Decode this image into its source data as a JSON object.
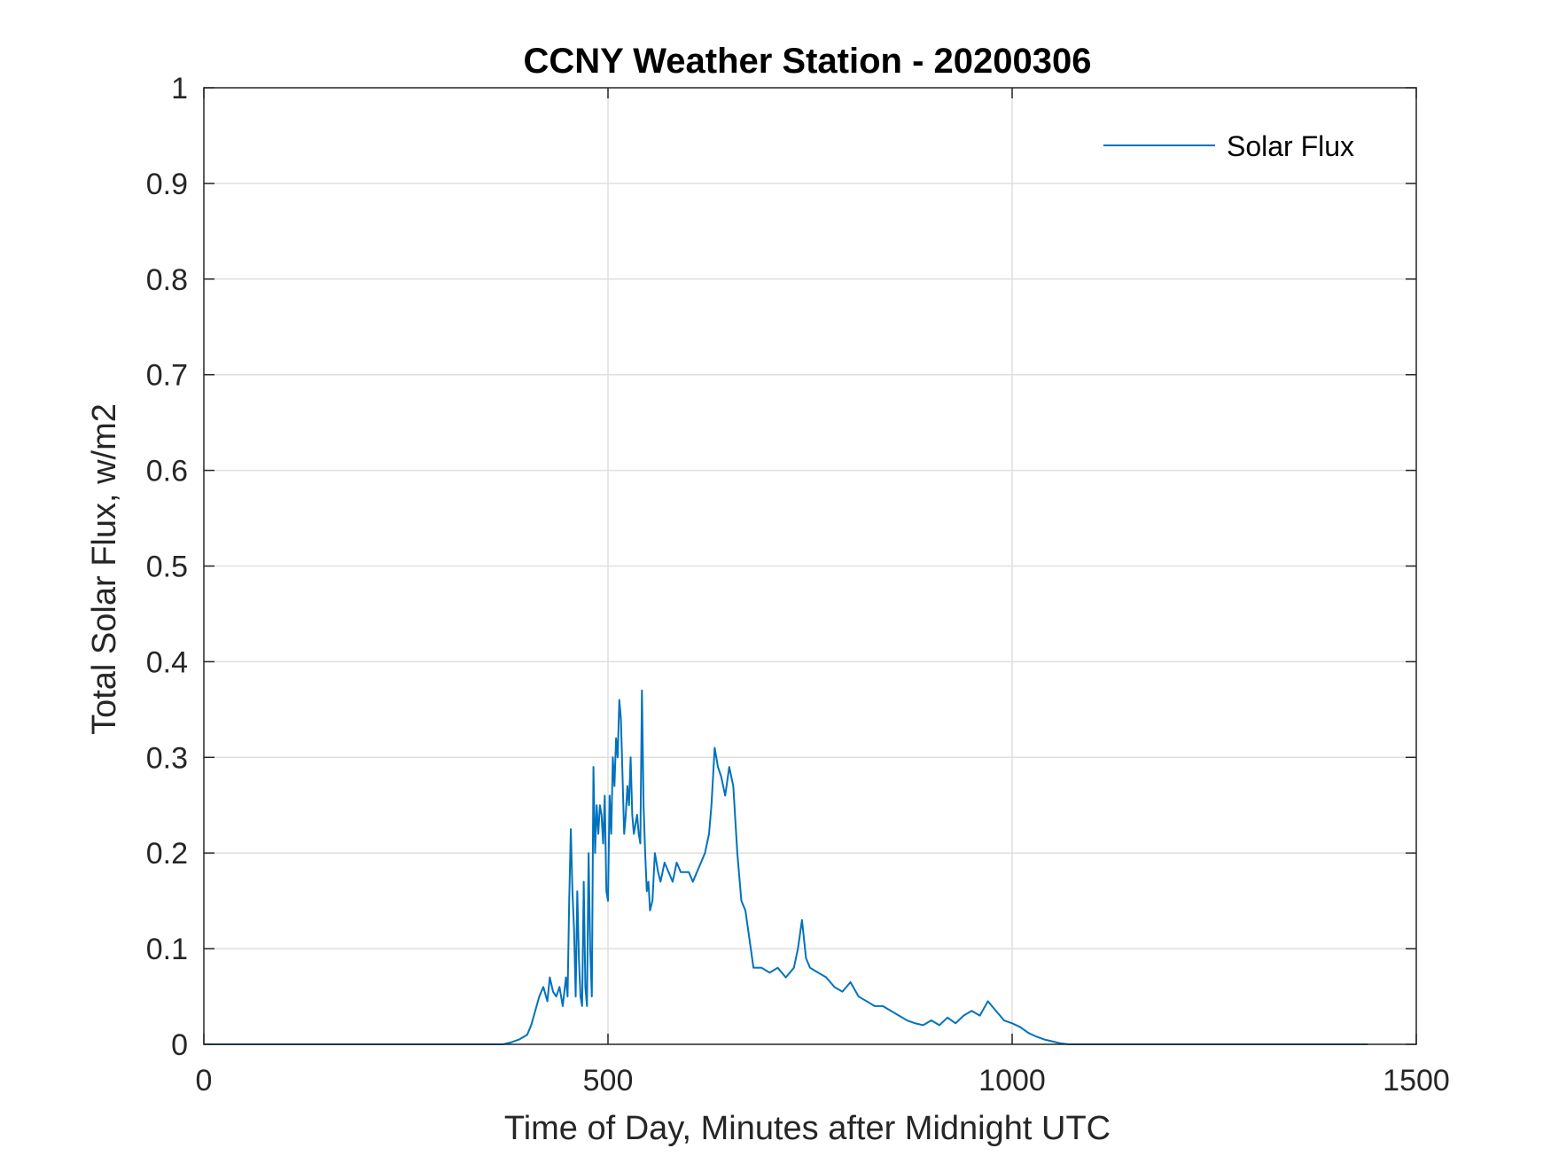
{
  "chart_data": {
    "type": "line",
    "title": "CCNY Weather Station - 20200306",
    "xlabel": "Time of Day, Minutes after Midnight UTC",
    "ylabel": "Total Solar Flux, w/m2",
    "xlim": [
      0,
      1500
    ],
    "ylim": [
      0,
      1
    ],
    "xticks": [
      0,
      500,
      1000,
      1500
    ],
    "yticks": [
      0,
      0.1,
      0.2,
      0.3,
      0.4,
      0.5,
      0.6,
      0.7,
      0.8,
      0.9,
      1
    ],
    "grid": true,
    "legend_position": "top-right",
    "series": [
      {
        "name": "Solar Flux",
        "color": "#0072BD",
        "x": [
          0,
          100,
          200,
          300,
          370,
          380,
          390,
          400,
          405,
          410,
          415,
          420,
          425,
          428,
          432,
          436,
          440,
          444,
          448,
          450,
          452,
          454,
          456,
          458,
          460,
          462,
          464,
          466,
          468,
          470,
          472,
          474,
          476,
          478,
          480,
          482,
          484,
          486,
          488,
          490,
          492,
          494,
          496,
          498,
          500,
          502,
          504,
          506,
          508,
          510,
          512,
          514,
          516,
          518,
          520,
          522,
          524,
          526,
          528,
          530,
          532,
          534,
          536,
          538,
          540,
          542,
          544,
          546,
          548,
          550,
          552,
          555,
          558,
          562,
          565,
          570,
          575,
          580,
          585,
          590,
          595,
          600,
          605,
          610,
          615,
          620,
          625,
          628,
          632,
          636,
          640,
          645,
          650,
          655,
          660,
          665,
          670,
          675,
          680,
          690,
          700,
          710,
          720,
          730,
          735,
          740,
          745,
          750,
          760,
          770,
          780,
          790,
          800,
          810,
          820,
          830,
          840,
          850,
          860,
          870,
          880,
          890,
          900,
          910,
          920,
          930,
          940,
          950,
          960,
          970,
          975,
          980,
          985,
          990,
          1000,
          1010,
          1020,
          1030,
          1040,
          1050,
          1060,
          1070,
          1080,
          1100,
          1200,
          1300,
          1440
        ],
        "y": [
          0,
          0,
          0,
          0,
          0,
          0.002,
          0.005,
          0.01,
          0.02,
          0.035,
          0.05,
          0.06,
          0.045,
          0.07,
          0.055,
          0.05,
          0.06,
          0.04,
          0.07,
          0.05,
          0.15,
          0.225,
          0.16,
          0.12,
          0.05,
          0.16,
          0.09,
          0.05,
          0.04,
          0.17,
          0.06,
          0.04,
          0.2,
          0.1,
          0.05,
          0.29,
          0.2,
          0.25,
          0.22,
          0.25,
          0.24,
          0.21,
          0.26,
          0.16,
          0.15,
          0.26,
          0.22,
          0.3,
          0.27,
          0.32,
          0.3,
          0.36,
          0.34,
          0.28,
          0.22,
          0.24,
          0.27,
          0.25,
          0.3,
          0.24,
          0.22,
          0.23,
          0.24,
          0.22,
          0.21,
          0.37,
          0.25,
          0.2,
          0.16,
          0.17,
          0.14,
          0.15,
          0.2,
          0.18,
          0.17,
          0.19,
          0.18,
          0.17,
          0.19,
          0.18,
          0.18,
          0.18,
          0.17,
          0.18,
          0.19,
          0.2,
          0.22,
          0.25,
          0.31,
          0.29,
          0.28,
          0.26,
          0.29,
          0.27,
          0.2,
          0.15,
          0.14,
          0.11,
          0.08,
          0.08,
          0.075,
          0.08,
          0.07,
          0.08,
          0.1,
          0.13,
          0.09,
          0.08,
          0.075,
          0.07,
          0.06,
          0.055,
          0.065,
          0.05,
          0.045,
          0.04,
          0.04,
          0.035,
          0.03,
          0.025,
          0.022,
          0.02,
          0.025,
          0.02,
          0.028,
          0.022,
          0.03,
          0.035,
          0.03,
          0.045,
          0.04,
          0.035,
          0.03,
          0.025,
          0.022,
          0.018,
          0.012,
          0.008,
          0.005,
          0.003,
          0.001,
          0,
          0,
          0,
          0,
          0,
          0
        ]
      }
    ]
  }
}
